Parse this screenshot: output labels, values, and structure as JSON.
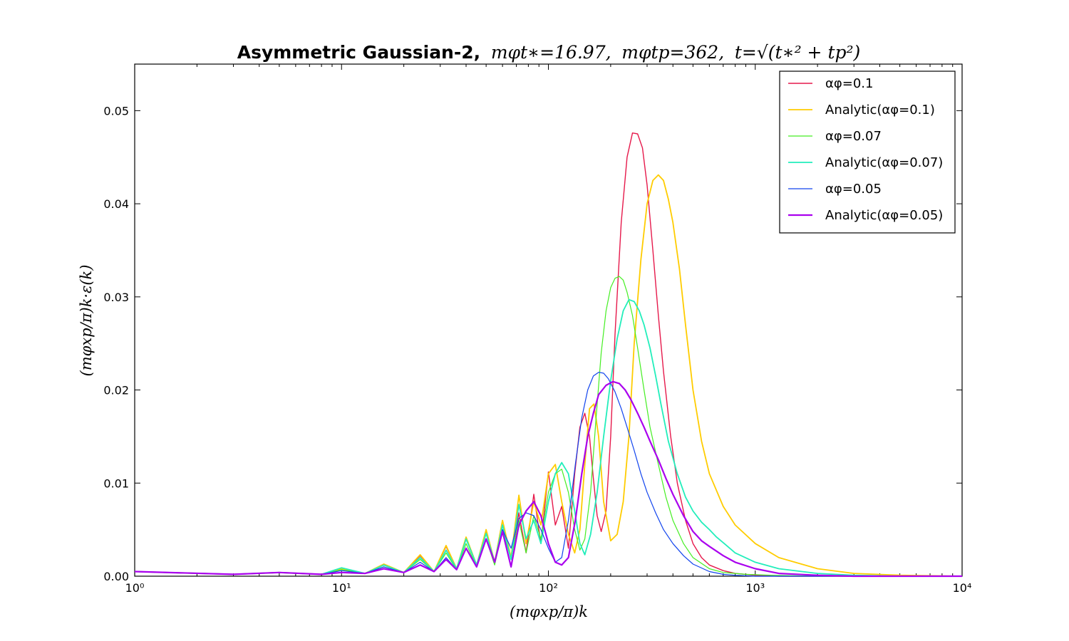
{
  "chart_data": {
    "type": "line",
    "title": {
      "prefix": "Asymmetric Gaussian-2,",
      "part1": "mφt∗=16.97,",
      "part2": "mφtp=362,",
      "part3": "t=√(t∗² + tp²)"
    },
    "xlabel": "(mφxp/π)k",
    "ylabel": "(mφxp/π)k·ε(k)",
    "xscale": "log",
    "xlim": [
      1,
      10000
    ],
    "ylim": [
      0,
      0.055
    ],
    "xticks": [
      {
        "value": 1,
        "label": "10⁰"
      },
      {
        "value": 10,
        "label": "10¹"
      },
      {
        "value": 100,
        "label": "10²"
      },
      {
        "value": 1000,
        "label": "10³"
      },
      {
        "value": 10000,
        "label": "10⁴"
      }
    ],
    "yticks": [
      {
        "value": 0,
        "label": "0.00"
      },
      {
        "value": 0.01,
        "label": "0.01"
      },
      {
        "value": 0.02,
        "label": "0.02"
      },
      {
        "value": 0.03,
        "label": "0.03"
      },
      {
        "value": 0.04,
        "label": "0.04"
      },
      {
        "value": 0.05,
        "label": "0.05"
      }
    ],
    "grid": false,
    "legend_position": "top-right",
    "series": [
      {
        "name": "αφ=0.1",
        "color": "#e6194b",
        "width": 1.4,
        "x": [
          1,
          3,
          5,
          8,
          10,
          13,
          16,
          20,
          24,
          28,
          32,
          36,
          40,
          45,
          50,
          55,
          60,
          66,
          72,
          78,
          85,
          92,
          100,
          108,
          116,
          125,
          134,
          142,
          150,
          158,
          165,
          172,
          180,
          190,
          200,
          210,
          225,
          240,
          255,
          270,
          285,
          300,
          320,
          340,
          360,
          390,
          420,
          460,
          500,
          550,
          600,
          700,
          800,
          1000,
          1300,
          2000,
          3000,
          5000,
          10000
        ],
        "y": [
          0.0005,
          0.0002,
          0.0004,
          0.0002,
          0.0008,
          0.0003,
          0.0012,
          0.0004,
          0.0022,
          0.0005,
          0.0032,
          0.0008,
          0.004,
          0.0012,
          0.0048,
          0.0015,
          0.0055,
          0.002,
          0.0068,
          0.0025,
          0.0088,
          0.0035,
          0.0112,
          0.0055,
          0.0075,
          0.003,
          0.011,
          0.016,
          0.0175,
          0.015,
          0.0105,
          0.0065,
          0.0048,
          0.007,
          0.015,
          0.026,
          0.038,
          0.045,
          0.0476,
          0.0475,
          0.046,
          0.042,
          0.035,
          0.028,
          0.022,
          0.015,
          0.01,
          0.006,
          0.0035,
          0.002,
          0.0012,
          0.0006,
          0.0003,
          0.0001,
          0,
          0,
          0,
          0,
          0
        ]
      },
      {
        "name": "Analytic(αφ=0.1)",
        "color": "#ffcc00",
        "width": 1.8,
        "x": [
          1,
          3,
          5,
          8,
          10,
          13,
          16,
          20,
          24,
          28,
          32,
          36,
          40,
          45,
          50,
          55,
          60,
          66,
          72,
          78,
          85,
          92,
          100,
          108,
          116,
          125,
          134,
          142,
          150,
          158,
          166,
          175,
          185,
          200,
          215,
          230,
          245,
          260,
          280,
          300,
          320,
          340,
          360,
          380,
          400,
          430,
          460,
          500,
          550,
          600,
          700,
          800,
          1000,
          1300,
          2000,
          3000,
          5000,
          10000
        ],
        "y": [
          0.0005,
          0.0002,
          0.0004,
          0.0002,
          0.0008,
          0.0003,
          0.0013,
          0.0004,
          0.0023,
          0.0005,
          0.0033,
          0.0008,
          0.0042,
          0.0012,
          0.005,
          0.0015,
          0.006,
          0.002,
          0.0087,
          0.0035,
          0.008,
          0.0055,
          0.011,
          0.012,
          0.008,
          0.0045,
          0.0025,
          0.005,
          0.012,
          0.018,
          0.0185,
          0.015,
          0.008,
          0.0038,
          0.0045,
          0.008,
          0.015,
          0.025,
          0.034,
          0.04,
          0.0425,
          0.0431,
          0.0425,
          0.0405,
          0.038,
          0.033,
          0.027,
          0.02,
          0.0145,
          0.011,
          0.0075,
          0.0055,
          0.0035,
          0.002,
          0.0008,
          0.0003,
          0.0001,
          0
        ]
      },
      {
        "name": "αφ=0.07",
        "color": "#44ee22",
        "width": 1.2,
        "x": [
          1,
          3,
          5,
          8,
          10,
          13,
          16,
          20,
          24,
          28,
          32,
          36,
          40,
          45,
          50,
          55,
          60,
          66,
          72,
          78,
          85,
          92,
          100,
          108,
          116,
          125,
          134,
          142,
          150,
          160,
          170,
          180,
          190,
          200,
          210,
          220,
          230,
          240,
          255,
          270,
          290,
          310,
          340,
          370,
          400,
          450,
          500,
          600,
          700,
          900,
          1200,
          2000,
          3000,
          5000,
          10000
        ],
        "y": [
          0.0005,
          0.0002,
          0.0004,
          0.0002,
          0.0007,
          0.0003,
          0.001,
          0.0004,
          0.0018,
          0.0005,
          0.0025,
          0.0007,
          0.0035,
          0.001,
          0.004,
          0.0012,
          0.005,
          0.0018,
          0.006,
          0.0025,
          0.0065,
          0.004,
          0.009,
          0.011,
          0.0115,
          0.009,
          0.005,
          0.0028,
          0.004,
          0.009,
          0.017,
          0.024,
          0.0285,
          0.031,
          0.032,
          0.0322,
          0.0318,
          0.0305,
          0.028,
          0.0245,
          0.02,
          0.016,
          0.012,
          0.0085,
          0.006,
          0.0035,
          0.002,
          0.0008,
          0.0004,
          0.0002,
          0.0001,
          0,
          0,
          0,
          0
        ]
      },
      {
        "name": "Analytic(αφ=0.07)",
        "color": "#22eebb",
        "width": 1.8,
        "x": [
          1,
          3,
          5,
          8,
          10,
          13,
          16,
          20,
          24,
          28,
          32,
          36,
          40,
          45,
          50,
          55,
          60,
          66,
          72,
          78,
          85,
          92,
          100,
          108,
          116,
          125,
          134,
          142,
          150,
          160,
          172,
          185,
          200,
          215,
          230,
          245,
          260,
          275,
          290,
          310,
          330,
          350,
          380,
          420,
          460,
          500,
          550,
          600,
          650,
          700,
          800,
          1000,
          1300,
          2000,
          3000,
          5000,
          10000
        ],
        "y": [
          0.0005,
          0.0002,
          0.0004,
          0.0002,
          0.0009,
          0.0003,
          0.0012,
          0.0004,
          0.002,
          0.0005,
          0.0028,
          0.0008,
          0.004,
          0.0012,
          0.0046,
          0.0015,
          0.0055,
          0.0018,
          0.0077,
          0.004,
          0.006,
          0.0035,
          0.008,
          0.011,
          0.0122,
          0.011,
          0.007,
          0.0035,
          0.0023,
          0.0045,
          0.009,
          0.015,
          0.021,
          0.0255,
          0.0285,
          0.0297,
          0.0295,
          0.0285,
          0.027,
          0.0245,
          0.0215,
          0.0185,
          0.0145,
          0.011,
          0.0085,
          0.007,
          0.0058,
          0.005,
          0.0042,
          0.0036,
          0.0025,
          0.0015,
          0.0008,
          0.0003,
          0.0001,
          0,
          0
        ]
      },
      {
        "name": "αφ=0.05",
        "color": "#1144ee",
        "width": 1.2,
        "x": [
          1,
          3,
          5,
          8,
          10,
          13,
          16,
          20,
          24,
          28,
          32,
          36,
          40,
          45,
          50,
          55,
          60,
          66,
          72,
          78,
          85,
          92,
          100,
          108,
          116,
          125,
          135,
          145,
          155,
          165,
          175,
          185,
          195,
          210,
          225,
          240,
          260,
          280,
          300,
          330,
          360,
          400,
          450,
          500,
          600,
          700,
          800,
          1000,
          1300,
          2000,
          3000,
          5000,
          10000
        ],
        "y": [
          0.0005,
          0.0002,
          0.0004,
          0.0002,
          0.0006,
          0.0003,
          0.001,
          0.0004,
          0.0015,
          0.0005,
          0.002,
          0.0007,
          0.003,
          0.001,
          0.004,
          0.0015,
          0.005,
          0.003,
          0.0062,
          0.0068,
          0.0065,
          0.005,
          0.003,
          0.0015,
          0.002,
          0.006,
          0.012,
          0.017,
          0.02,
          0.0215,
          0.0219,
          0.0218,
          0.0212,
          0.0198,
          0.018,
          0.016,
          0.0135,
          0.011,
          0.009,
          0.0068,
          0.005,
          0.0035,
          0.0022,
          0.0013,
          0.0005,
          0.0002,
          0.0001,
          0,
          0,
          0,
          0,
          0,
          0
        ]
      },
      {
        "name": "Analytic(αφ=0.05)",
        "color": "#aa00ee",
        "width": 2.2,
        "x": [
          1,
          3,
          5,
          8,
          10,
          13,
          16,
          20,
          24,
          28,
          32,
          36,
          40,
          45,
          50,
          55,
          60,
          66,
          72,
          78,
          85,
          92,
          100,
          108,
          116,
          125,
          135,
          145,
          155,
          165,
          175,
          190,
          205,
          220,
          235,
          250,
          270,
          290,
          310,
          340,
          370,
          400,
          450,
          500,
          550,
          600,
          700,
          800,
          1000,
          1300,
          2000,
          3000,
          5000,
          10000
        ],
        "y": [
          0.0005,
          0.0002,
          0.0004,
          0.0002,
          0.0004,
          0.0003,
          0.0008,
          0.0004,
          0.0012,
          0.0005,
          0.0018,
          0.0007,
          0.003,
          0.001,
          0.004,
          0.0015,
          0.0048,
          0.001,
          0.0055,
          0.007,
          0.008,
          0.0065,
          0.0035,
          0.0015,
          0.0012,
          0.002,
          0.006,
          0.011,
          0.015,
          0.0175,
          0.0195,
          0.0205,
          0.0209,
          0.0207,
          0.02,
          0.019,
          0.0175,
          0.016,
          0.0145,
          0.0125,
          0.0105,
          0.0088,
          0.0065,
          0.0048,
          0.0038,
          0.0032,
          0.0022,
          0.0015,
          0.0008,
          0.0003,
          0.0001,
          0,
          0,
          0
        ]
      }
    ]
  }
}
